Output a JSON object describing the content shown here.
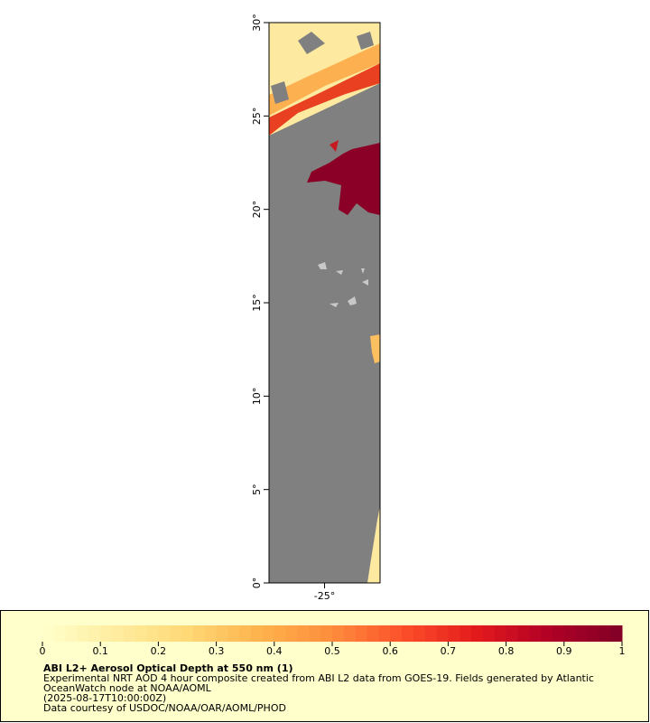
{
  "chart_data": {
    "type": "map",
    "title": "ABI L2+ Aerosol Optical Depth at 550 nm (1)",
    "description": [
      "Experimental NRT AOD 4 hour composite created from ABI L2 data from GOES-19. Fields generated by Atlantic",
      "OceanWatch node at NOAA/AOML"
    ],
    "time": "(2025-08-17T10:00:00Z)",
    "credit": "Data courtesy of USDOC/NOAA/OAR/AOML/PHOD",
    "xlim": [
      -28,
      -22
    ],
    "ylim": [
      0,
      30
    ],
    "xticks": [
      {
        "value": -25,
        "label": "-25°"
      }
    ],
    "yticks": [
      {
        "value": 0,
        "label": "0°"
      },
      {
        "value": 5,
        "label": "5°"
      },
      {
        "value": 10,
        "label": "10°"
      },
      {
        "value": 15,
        "label": "15°"
      },
      {
        "value": 20,
        "label": "20°"
      },
      {
        "value": 25,
        "label": "25°"
      },
      {
        "value": 30,
        "label": "30°"
      }
    ],
    "colorbar_ticks": [
      0,
      0.1,
      0.2,
      0.3,
      0.4,
      0.5,
      0.6,
      0.7,
      0.8,
      0.9,
      1
    ],
    "colormap": [
      "#ffffcc",
      "#ffeda0",
      "#fed976",
      "#feb24c",
      "#fd8d3c",
      "#fc4e2a",
      "#e31a1c",
      "#b10026",
      "#800026"
    ]
  }
}
